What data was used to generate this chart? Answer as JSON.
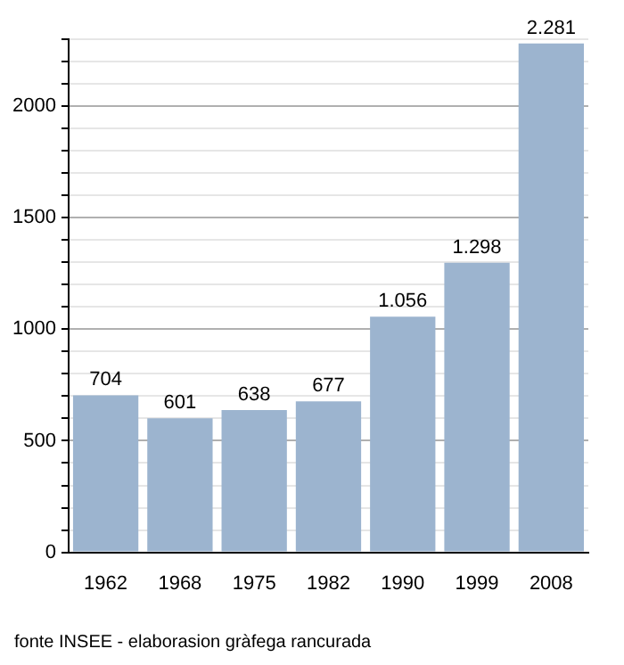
{
  "chart_data": {
    "type": "bar",
    "categories": [
      "1962",
      "1968",
      "1975",
      "1982",
      "1990",
      "1999",
      "2008"
    ],
    "values": [
      704,
      601,
      638,
      677,
      1056,
      1298,
      2281
    ],
    "value_labels": [
      "704",
      "601",
      "638",
      "677",
      "1.056",
      "1.298",
      "2.281"
    ],
    "color": "#9cb4cf",
    "ylim": [
      0,
      2300
    ],
    "yticks": [
      0,
      {
        "value": 100,
        "label": null
      },
      {
        "value": 200,
        "label": null
      },
      {
        "value": 300,
        "label": null
      },
      {
        "value": 400,
        "label": null
      },
      500,
      {
        "value": 600,
        "label": null
      },
      {
        "value": 700,
        "label": null
      },
      {
        "value": 800,
        "label": null
      },
      {
        "value": 900,
        "label": null
      },
      1000,
      {
        "value": 1100,
        "label": null
      },
      {
        "value": 1200,
        "label": null
      },
      {
        "value": 1300,
        "label": null
      },
      {
        "value": 1400,
        "label": null
      },
      1500,
      {
        "value": 1600,
        "label": null
      },
      {
        "value": 1700,
        "label": null
      },
      {
        "value": 1800,
        "label": null
      },
      {
        "value": 1900,
        "label": null
      },
      2000,
      {
        "value": 2100,
        "label": null
      },
      {
        "value": 2200,
        "label": null
      },
      {
        "value": 2300,
        "label": null
      }
    ],
    "grid": "y",
    "legend": false,
    "annotations": [
      "fonte INSEE - elaborasion gràfega rancurada"
    ]
  }
}
